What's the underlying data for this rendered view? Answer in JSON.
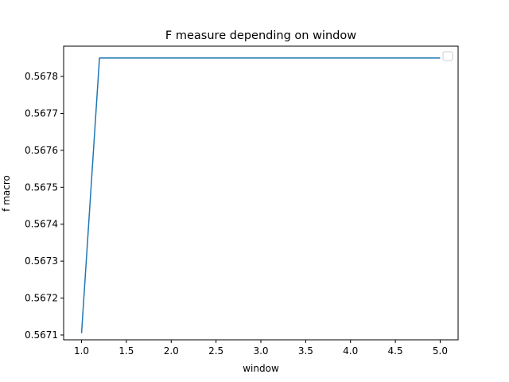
{
  "chart_data": {
    "type": "line",
    "title": "F measure depending on window",
    "xlabel": "window",
    "ylabel": "f macro",
    "xlim": [
      0.8,
      5.2
    ],
    "ylim": [
      0.567087,
      0.567882
    ],
    "x_ticks": [
      1.0,
      1.5,
      2.0,
      2.5,
      3.0,
      3.5,
      4.0,
      4.5,
      5.0
    ],
    "x_tick_labels": [
      "1.0",
      "1.5",
      "2.0",
      "2.5",
      "3.0",
      "3.5",
      "4.0",
      "4.5",
      "5.0"
    ],
    "y_ticks": [
      0.5671,
      0.5672,
      0.5673,
      0.5674,
      0.5675,
      0.5676,
      0.5677,
      0.5678
    ],
    "y_tick_labels": [
      "0.5671",
      "0.5672",
      "0.5673",
      "0.5674",
      "0.5675",
      "0.5676",
      "0.5677",
      "0.5678"
    ],
    "grid": false,
    "legend": "top-right",
    "series": [
      {
        "color": "#1f77b4",
        "x": [
          1.0,
          1.2,
          1.4,
          1.6,
          1.8,
          2.0,
          2.2,
          2.4,
          2.6,
          2.8,
          3.0,
          3.2,
          3.4,
          3.6,
          3.8,
          4.0,
          4.2,
          4.4,
          4.6,
          4.8,
          5.0
        ],
        "y": [
          0.567105,
          0.56785,
          0.56785,
          0.56785,
          0.56785,
          0.56785,
          0.56785,
          0.56785,
          0.56785,
          0.56785,
          0.56785,
          0.56785,
          0.56785,
          0.56785,
          0.56785,
          0.56785,
          0.56785,
          0.56785,
          0.56785,
          0.56785,
          0.56785
        ]
      }
    ]
  }
}
